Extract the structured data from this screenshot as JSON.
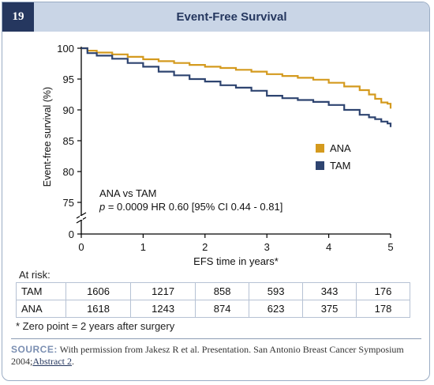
{
  "figure_number": "19",
  "title": "Event-Free Survival",
  "chart_data": {
    "type": "line",
    "title": "Event-Free Survival",
    "xlabel": "EFS time in years*",
    "ylabel": "Event-free survival (%)",
    "x_ticks": [
      "0",
      "1",
      "2",
      "3",
      "4",
      "5"
    ],
    "y_ticks": [
      "0",
      "75",
      "80",
      "85",
      "90",
      "95",
      "100"
    ],
    "xlim": [
      0,
      5
    ],
    "ylim": [
      72,
      100
    ],
    "y_axis_break": true,
    "legend_position": "right",
    "series": [
      {
        "name": "ANA",
        "color": "#d49a1e",
        "points": [
          [
            0,
            100
          ],
          [
            0.1,
            99.6
          ],
          [
            0.25,
            99.3
          ],
          [
            0.5,
            99
          ],
          [
            0.75,
            98.6
          ],
          [
            1,
            98.2
          ],
          [
            1.25,
            97.9
          ],
          [
            1.5,
            97.6
          ],
          [
            1.75,
            97.3
          ],
          [
            2,
            97
          ],
          [
            2.25,
            96.8
          ],
          [
            2.5,
            96.5
          ],
          [
            2.75,
            96.2
          ],
          [
            3,
            95.8
          ],
          [
            3.25,
            95.5
          ],
          [
            3.5,
            95.2
          ],
          [
            3.75,
            94.9
          ],
          [
            4,
            94.4
          ],
          [
            4.25,
            93.8
          ],
          [
            4.5,
            93.2
          ],
          [
            4.65,
            92.5
          ],
          [
            4.75,
            91.8
          ],
          [
            4.85,
            91.2
          ],
          [
            4.95,
            91
          ],
          [
            5,
            90.2
          ]
        ]
      },
      {
        "name": "TAM",
        "color": "#2e4470",
        "points": [
          [
            0,
            100
          ],
          [
            0.1,
            99.2
          ],
          [
            0.25,
            98.8
          ],
          [
            0.5,
            98.3
          ],
          [
            0.75,
            97.6
          ],
          [
            1,
            97
          ],
          [
            1.25,
            96.2
          ],
          [
            1.5,
            95.6
          ],
          [
            1.75,
            95
          ],
          [
            2,
            94.6
          ],
          [
            2.25,
            94
          ],
          [
            2.5,
            93.6
          ],
          [
            2.75,
            93.1
          ],
          [
            3,
            92.3
          ],
          [
            3.25,
            91.9
          ],
          [
            3.5,
            91.6
          ],
          [
            3.75,
            91.3
          ],
          [
            4,
            90.8
          ],
          [
            4.25,
            90
          ],
          [
            4.5,
            89.2
          ],
          [
            4.65,
            88.8
          ],
          [
            4.75,
            88.5
          ],
          [
            4.85,
            88.1
          ],
          [
            4.95,
            87.8
          ],
          [
            5,
            87.2
          ]
        ]
      }
    ],
    "annotation": {
      "line1": "ANA vs TAM",
      "p_symbol": "p",
      "line2": " = 0.0009 HR 0.60 [95% CI 0.44 - 0.81]"
    }
  },
  "at_risk": {
    "label": "At risk:",
    "rows": [
      {
        "name": "TAM",
        "values": [
          "1606",
          "1217",
          "858",
          "593",
          "343",
          "176"
        ]
      },
      {
        "name": "ANA",
        "values": [
          "1618",
          "1243",
          "874",
          "623",
          "375",
          "178"
        ]
      }
    ]
  },
  "footnote": "* Zero point = 2 years after surgery",
  "source": {
    "label": "SOURCE:",
    "text": " With permission from Jakesz R et al. Presentation. San Antonio Breast Cancer Symposium 2004;",
    "link": "Abstract 2",
    "end": "."
  }
}
